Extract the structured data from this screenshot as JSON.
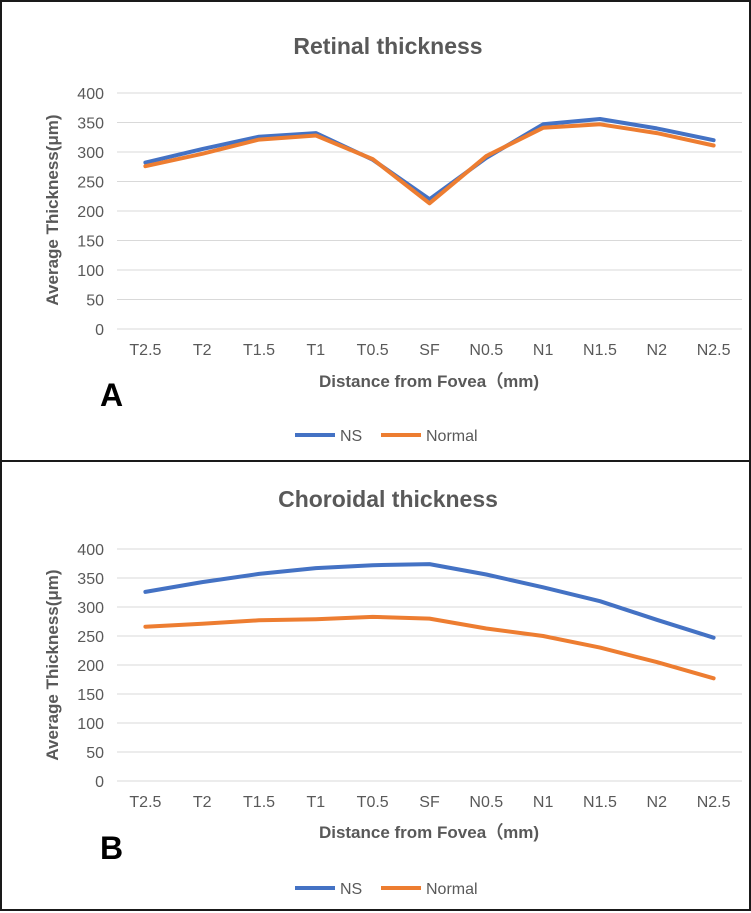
{
  "colors": {
    "NS": "#4472C4",
    "Normal": "#ED7D31",
    "grid": "#D9D9D9",
    "text": "#595959"
  },
  "chart_data": [
    {
      "type": "line",
      "panel_label": "A",
      "title": "Retinal thickness",
      "xlabel": "Distance from Fovea（mm)",
      "ylabel": "Average Thickness(μm)",
      "categories": [
        "T2.5",
        "T2",
        "T1.5",
        "T1",
        "T0.5",
        "SF",
        "N0.5",
        "N1",
        "N1.5",
        "N2",
        "N2.5"
      ],
      "ylim": [
        0,
        400
      ],
      "yticks": [
        "0",
        "50",
        "100",
        "150",
        "200",
        "250",
        "300",
        "350",
        "400"
      ],
      "grid": true,
      "legend": "bottom",
      "series": [
        {
          "name": "NS",
          "values": [
            282,
            305,
            326,
            332,
            287,
            220,
            290,
            347,
            356,
            340,
            320
          ]
        },
        {
          "name": "Normal",
          "values": [
            276,
            297,
            321,
            328,
            288,
            213,
            293,
            341,
            347,
            332,
            311
          ]
        }
      ]
    },
    {
      "type": "line",
      "panel_label": "B",
      "title": "Choroidal thickness",
      "xlabel": "Distance from Fovea（mm)",
      "ylabel": "Average Thickness(μm)",
      "categories": [
        "T2.5",
        "T2",
        "T1.5",
        "T1",
        "T0.5",
        "SF",
        "N0.5",
        "N1",
        "N1.5",
        "N2",
        "N2.5"
      ],
      "ylim": [
        0,
        400
      ],
      "yticks": [
        "0",
        "50",
        "100",
        "150",
        "200",
        "250",
        "300",
        "350",
        "400"
      ],
      "grid": true,
      "legend": "bottom",
      "series": [
        {
          "name": "NS",
          "values": [
            326,
            343,
            357,
            367,
            372,
            374,
            356,
            334,
            310,
            278,
            247
          ]
        },
        {
          "name": "Normal",
          "values": [
            266,
            271,
            277,
            279,
            283,
            280,
            263,
            250,
            230,
            205,
            177
          ]
        }
      ]
    }
  ]
}
